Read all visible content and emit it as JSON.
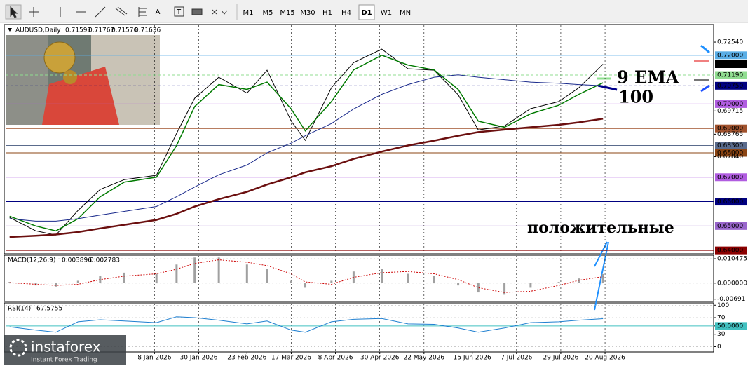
{
  "toolbar": {
    "tools_text": [
      "A",
      "T"
    ],
    "timeframes": [
      "M1",
      "M5",
      "M15",
      "M30",
      "H1",
      "H4",
      "D1",
      "W1",
      "MN"
    ],
    "active": "D1"
  },
  "logo": {
    "name": "instaforex",
    "tagline": "Instant Forex Trading"
  },
  "annotations": [
    {
      "text": "9 EMA",
      "color": "#8fe08f"
    },
    {
      "text": "100",
      "color": "#00008b"
    },
    {
      "text": "положительные",
      "color": "#1e90ff"
    }
  ],
  "chart_data": [
    {
      "type": "line",
      "title": "AUDUSD,Daily",
      "ohlc": [
        0.71597,
        0.71767,
        0.71576,
        0.71636
      ],
      "x": [
        "2025-10-28",
        "2025-11-10",
        "2025-11-20",
        "2025-12-01",
        "2025-12-12",
        "2025-12-24",
        "2026-01-09",
        "2026-01-19",
        "2026-01-28",
        "2026-02-09",
        "2026-02-23",
        "2026-03-05",
        "2026-03-17",
        "2026-03-24",
        "2026-04-06",
        "2026-04-17",
        "2026-05-01",
        "2026-05-14",
        "2026-05-27",
        "2026-06-08",
        "2026-06-18",
        "2026-07-01",
        "2026-07-14",
        "2026-07-28",
        "2026-08-07",
        "2026-08-19"
      ],
      "xlim": [
        "2025-10-26",
        "2026-10-13"
      ],
      "xticks": [
        {
          "value": "2026-01-08",
          "label": "8 Jan 2026"
        },
        {
          "value": "2026-01-30",
          "label": "30 Jan 2026"
        },
        {
          "value": "2026-02-23",
          "label": "23 Feb 2026"
        },
        {
          "value": "2026-03-17",
          "label": "17 Mar 2026"
        },
        {
          "value": "2026-04-08",
          "label": "8 Apr 2026"
        },
        {
          "value": "2026-04-30",
          "label": "30 Apr 2026"
        },
        {
          "value": "2026-05-22",
          "label": "22 May 2026"
        },
        {
          "value": "2026-06-15",
          "label": "15 Jun 2026"
        },
        {
          "value": "2026-07-07",
          "label": "7 Jul 2026"
        },
        {
          "value": "2026-07-29",
          "label": "29 Jul 2026"
        },
        {
          "value": "2026-08-20",
          "label": "20 Aug 2026"
        }
      ],
      "ylim": [
        0.6386,
        0.7326
      ],
      "yticks": [
        {
          "value": 0.7254,
          "label": "0.72540"
        },
        {
          "value": 0.69715,
          "label": "0.69715"
        },
        {
          "value": 0.68765,
          "label": "0.68765"
        },
        {
          "value": 0.6784,
          "label": "0.67840"
        }
      ],
      "levels": [
        {
          "value": 0.72,
          "label": "0.72000",
          "color": "#5aaee6"
        },
        {
          "value": 0.7119,
          "label": "0.71190",
          "color": "#90dd90",
          "dash": true
        },
        {
          "value": 0.7075,
          "label": "0.70750",
          "color": "#000080",
          "dash": true
        },
        {
          "value": 0.7,
          "label": "0.70000",
          "color": "#b05ce0"
        },
        {
          "value": 0.69,
          "label": "0.69000",
          "color": "#a0522d"
        },
        {
          "value": 0.683,
          "label": "0.68300",
          "color": "#5a6b8c"
        },
        {
          "value": 0.68,
          "label": "0.68000",
          "color": "#8b4513"
        },
        {
          "value": 0.67,
          "label": "0.67000",
          "color": "#b05ce0"
        },
        {
          "value": 0.66,
          "label": "0.66000",
          "color": "#000080"
        },
        {
          "value": 0.65,
          "label": "0.65000",
          "color": "#9966cc"
        },
        {
          "value": 0.64,
          "label": "0.64000",
          "color": "#8b0000"
        }
      ],
      "series": [
        {
          "color": "#000000",
          "width": 1,
          "values": [
            0.6535,
            0.648,
            0.6463,
            0.6564,
            0.665,
            0.669,
            0.6708,
            0.688,
            0.7024,
            0.711,
            0.7045,
            0.7139,
            0.693,
            0.6851,
            0.7067,
            0.717,
            0.7225,
            0.7145,
            0.7139,
            0.7038,
            0.6894,
            0.691,
            0.6981,
            0.701,
            0.7067,
            0.71636
          ]
        },
        {
          "color": "#007a00",
          "width": 1.5,
          "values": [
            0.654,
            0.65,
            0.648,
            0.653,
            0.662,
            0.668,
            0.67,
            0.683,
            0.699,
            0.708,
            0.706,
            0.709,
            0.698,
            0.689,
            0.701,
            0.714,
            0.72,
            0.716,
            0.714,
            0.706,
            0.693,
            0.6905,
            0.696,
            0.6995,
            0.704,
            0.7087
          ]
        },
        {
          "color": "#1a2a8c",
          "width": 1,
          "values": [
            0.653,
            0.652,
            0.652,
            0.653,
            0.6545,
            0.656,
            0.658,
            0.662,
            0.666,
            0.671,
            0.675,
            0.68,
            0.684,
            0.687,
            0.692,
            0.698,
            0.704,
            0.708,
            0.711,
            0.712,
            0.711,
            0.71,
            0.709,
            0.7085,
            0.708,
            0.7075
          ]
        },
        {
          "color": "#6b0f0f",
          "width": 2.5,
          "values": [
            0.6455,
            0.646,
            0.6465,
            0.6475,
            0.649,
            0.6505,
            0.6525,
            0.655,
            0.658,
            0.661,
            0.664,
            0.667,
            0.67,
            0.672,
            0.6745,
            0.6775,
            0.6805,
            0.683,
            0.685,
            0.687,
            0.6885,
            0.6895,
            0.6905,
            0.6915,
            0.6925,
            0.694
          ]
        }
      ]
    },
    {
      "type": "macd",
      "title": "MACD(12,26,9)",
      "ylim": [
        -0.0079,
        0.012
      ],
      "yticks": [
        0.010475,
        {
          "value": 0,
          "label": "0.000000"
        },
        -0.00691
      ],
      "series": [
        {
          "style": "bar",
          "color": "#a0a0a0",
          "values": [
            0.0005,
            -0.001,
            -0.0015,
            0.001,
            0.003,
            0.0045,
            0.004,
            0.008,
            0.011,
            0.011,
            0.008,
            0.006,
            0.001,
            -0.002,
            0.001,
            0.005,
            0.006,
            0.004,
            0.003,
            -0.001,
            -0.004,
            -0.005,
            -0.002,
            0.0005,
            0.002,
            0.003896
          ]
        },
        {
          "style": "dotted",
          "color": "#cc0000",
          "values": [
            0.0002,
            -0.0005,
            -0.001,
            -0.0005,
            0.0015,
            0.003,
            0.004,
            0.006,
            0.0085,
            0.01,
            0.009,
            0.0075,
            0.004,
            0.0005,
            -0.0005,
            0.0025,
            0.0045,
            0.005,
            0.004,
            0.0015,
            -0.002,
            -0.004,
            -0.0035,
            -0.001,
            0.0012,
            0.002783
          ]
        }
      ]
    },
    {
      "type": "rsi",
      "title": "RSI(14)",
      "ylim": [
        -12.7,
        105.5
      ],
      "yticks": [
        100,
        70,
        {
          "value": 50,
          "label": "50.0000",
          "color": "#40c0c0"
        },
        30,
        0
      ],
      "series": [
        {
          "color": "#1e7fd0",
          "values": [
            48,
            40,
            35,
            60,
            65,
            62,
            58,
            72,
            70,
            64,
            55,
            62,
            40,
            35,
            60,
            66,
            68,
            55,
            54,
            45,
            35,
            45,
            58,
            60,
            64,
            67.5755
          ]
        }
      ]
    }
  ]
}
